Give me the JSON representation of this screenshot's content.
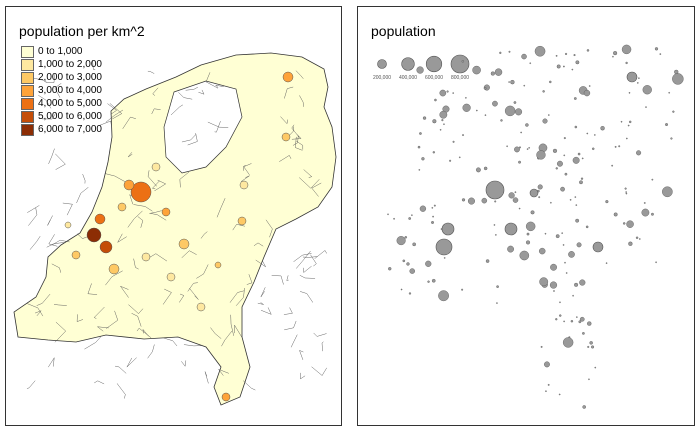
{
  "left_map": {
    "title": "population per km^2",
    "legend": [
      {
        "label": "0 to 1,000",
        "color": "#FFFFD4"
      },
      {
        "label": "1,000 to 2,000",
        "color": "#FEE8A0"
      },
      {
        "label": "2,000 to 3,000",
        "color": "#FEC965"
      },
      {
        "label": "3,000 to 4,000",
        "color": "#FEA33A"
      },
      {
        "label": "4,000 to 5,000",
        "color": "#EC7014"
      },
      {
        "label": "5,000 to 6,000",
        "color": "#C44D08"
      },
      {
        "label": "6,000 to 7,000",
        "color": "#8C2D04"
      }
    ]
  },
  "right_map": {
    "title": "population",
    "bubble_color": "#999999",
    "size_legend": [
      {
        "label": "200,000",
        "value": 200000
      },
      {
        "label": "400,000",
        "value": 400000
      },
      {
        "label": "600,000",
        "value": 600000
      },
      {
        "label": "800,000",
        "value": 800000
      }
    ]
  }
}
